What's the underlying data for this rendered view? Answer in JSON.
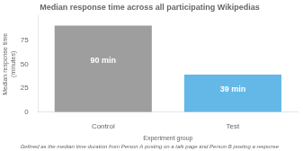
{
  "chart_data": {
    "type": "bar",
    "title": "Median response time across all participating Wikipedias",
    "xlabel": "Experiment group",
    "ylabel": "Median response time (minutes)",
    "footnote": "Defined as the median time duration from Person A posting on a talk page and Person B posting a response",
    "categories": [
      "Control",
      "Test"
    ],
    "values": [
      90,
      39
    ],
    "value_labels": [
      "90 min",
      "39 min"
    ],
    "data_labels": true,
    "colors": [
      "#9e9e9e",
      "#64b8e8"
    ],
    "ylim": [
      0,
      100
    ],
    "yticks": [
      0,
      25,
      50,
      75
    ],
    "grid": false
  }
}
